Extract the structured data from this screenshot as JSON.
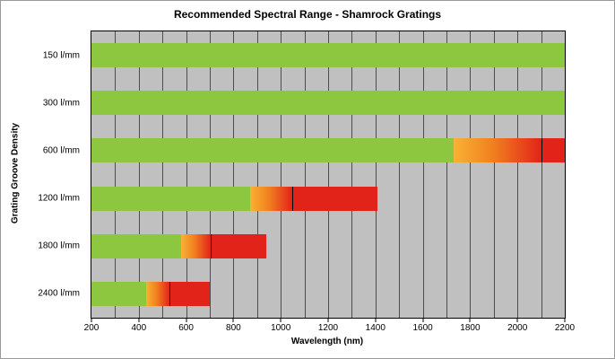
{
  "chart_data": {
    "type": "bar",
    "orientation": "horizontal",
    "title": "Recommended Spectral Range - Shamrock Gratings",
    "xlabel": "Wavelength  (nm)",
    "ylabel": "Grating Groove Density",
    "xlim": [
      200,
      2200
    ],
    "grid_step": 100,
    "xticks": [
      200,
      400,
      600,
      800,
      1000,
      1200,
      1400,
      1600,
      1800,
      2000,
      2200
    ],
    "categories": [
      "150 l/mm",
      "300 l/mm",
      "600 l/mm",
      "1200 l/mm",
      "1800 l/mm",
      "2400 l/mm"
    ],
    "series": [
      {
        "category": "150 l/mm",
        "segments": [
          {
            "from": 200,
            "to": 2200,
            "fill": "green"
          }
        ],
        "dividers": []
      },
      {
        "category": "300 l/mm",
        "segments": [
          {
            "from": 200,
            "to": 2200,
            "fill": "green"
          }
        ],
        "dividers": []
      },
      {
        "category": "600 l/mm",
        "segments": [
          {
            "from": 200,
            "to": 1730,
            "fill": "green"
          },
          {
            "from": 1730,
            "to": 2100,
            "fill": "gradient"
          },
          {
            "from": 2100,
            "to": 2200,
            "fill": "red"
          }
        ],
        "dividers": [
          2100
        ]
      },
      {
        "category": "1200 l/mm",
        "segments": [
          {
            "from": 200,
            "to": 870,
            "fill": "green"
          },
          {
            "from": 870,
            "to": 1050,
            "fill": "gradient"
          },
          {
            "from": 1050,
            "to": 1410,
            "fill": "red"
          }
        ],
        "dividers": [
          1050
        ]
      },
      {
        "category": "1800 l/mm",
        "segments": [
          {
            "from": 200,
            "to": 580,
            "fill": "green"
          },
          {
            "from": 580,
            "to": 705,
            "fill": "gradient"
          },
          {
            "from": 705,
            "to": 940,
            "fill": "red"
          }
        ],
        "dividers": [
          705
        ]
      },
      {
        "category": "2400 l/mm",
        "segments": [
          {
            "from": 200,
            "to": 430,
            "fill": "green"
          },
          {
            "from": 430,
            "to": 530,
            "fill": "gradient"
          },
          {
            "from": 530,
            "to": 700,
            "fill": "red"
          }
        ],
        "dividers": [
          530
        ]
      }
    ],
    "colors": {
      "green": "#8dc63f",
      "red": "#e2231a",
      "gradient_start": "#f9b233",
      "gradient_mid": "#f1801f",
      "gradient_end": "#e2231a",
      "plot_background": "#c0c0c0",
      "gridline": "#4d4d4d"
    }
  }
}
